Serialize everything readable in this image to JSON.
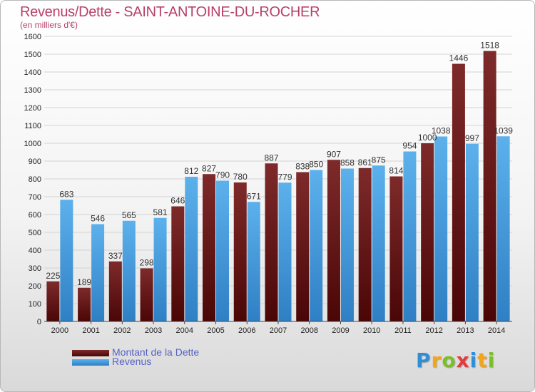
{
  "header": {
    "title": "Revenus/Dette - SAINT-ANTOINE-DU-ROCHER",
    "subtitle": "(en milliers d'€)"
  },
  "legend": {
    "debt_label": "Montant de la Dette",
    "revenue_label": "Revenus"
  },
  "logo": {
    "text": "Proxiti",
    "letters": [
      "P",
      "r",
      "o",
      "x",
      "i",
      "t",
      "i"
    ],
    "colors": [
      "#2f8fd6",
      "#f2a51f",
      "#7bbf2a",
      "#e43c3c",
      "#2f8fd6",
      "#f2a51f",
      "#7bbf2a"
    ]
  },
  "colors": {
    "debt": "#7b1d1d",
    "debt_dark": "#4a0606",
    "revenue": "#5aaeea",
    "revenue_dark": "#2f7fc4",
    "grid": "#d3d3d3"
  },
  "chart_data": {
    "type": "bar",
    "title": "Revenus/Dette - SAINT-ANTOINE-DU-ROCHER",
    "subtitle": "(en milliers d'€)",
    "categories": [
      "2000",
      "2001",
      "2002",
      "2003",
      "2004",
      "2005",
      "2006",
      "2007",
      "2008",
      "2009",
      "2010",
      "2011",
      "2012",
      "2013",
      "2014"
    ],
    "series": [
      {
        "name": "Montant de la Dette",
        "values": [
          225,
          189,
          337,
          298,
          646,
          827,
          780,
          887,
          838,
          907,
          861,
          814,
          1000,
          1446,
          1518
        ]
      },
      {
        "name": "Revenus",
        "values": [
          683,
          546,
          565,
          581,
          812,
          790,
          671,
          779,
          850,
          858,
          875,
          954,
          1038,
          997,
          1039
        ]
      }
    ],
    "value_labels": [
      [
        "225",
        "189",
        "337",
        "298",
        "646",
        "827",
        "780",
        "887",
        "838",
        "907",
        "861",
        "814",
        "1000",
        "1446",
        "1518"
      ],
      [
        "683",
        "546",
        "565",
        "581",
        "812",
        "790",
        "671",
        "779",
        "850",
        "858",
        "875",
        "954",
        "1038",
        "997",
        "1039"
      ]
    ],
    "yticks": [
      "0",
      "100",
      "200",
      "300",
      "400",
      "500",
      "600",
      "700",
      "800",
      "900",
      "1000",
      "1100",
      "1200",
      "1300",
      "1400",
      "1500",
      "1600"
    ],
    "ylim": [
      0,
      1600
    ],
    "grid": true,
    "legend_position": "bottom-left"
  }
}
